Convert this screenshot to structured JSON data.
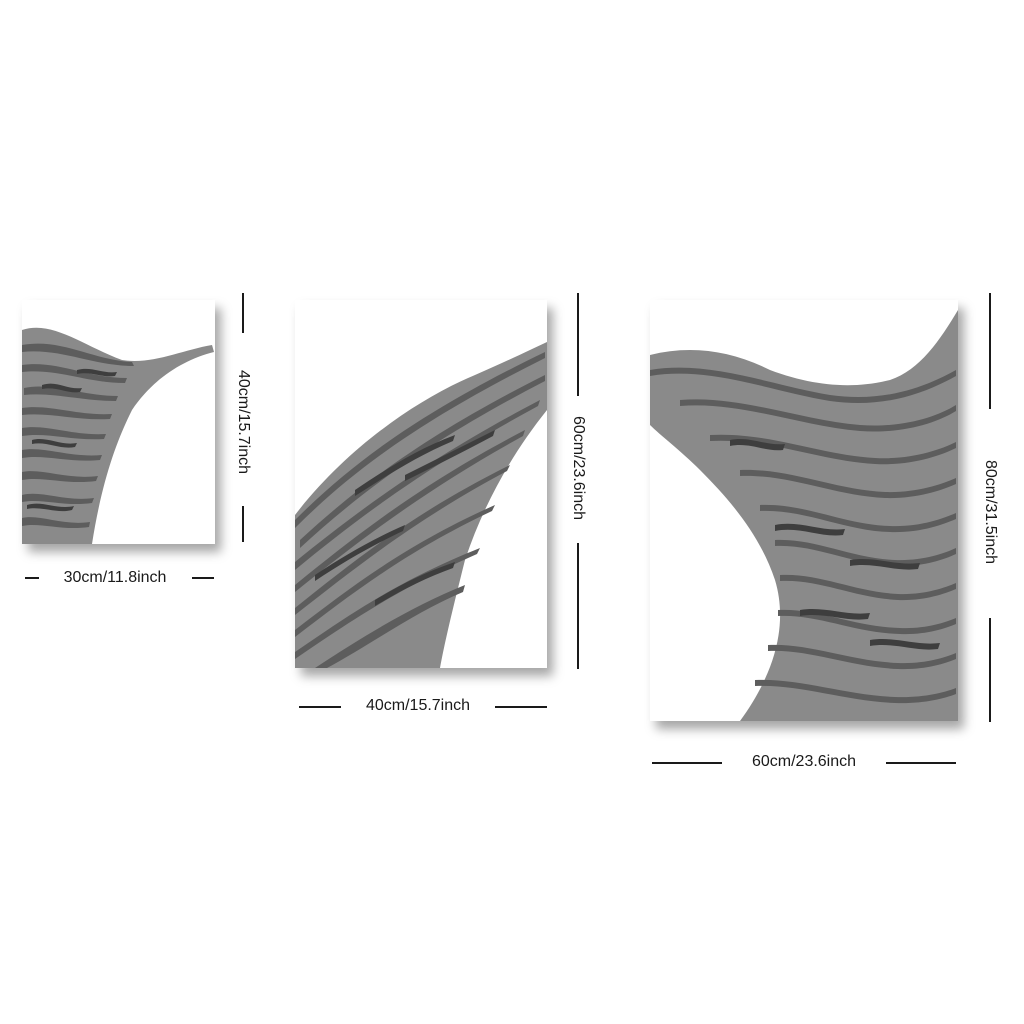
{
  "panels": [
    {
      "width_label": "30cm/11.8inch",
      "height_label": "40cm/15.7inch"
    },
    {
      "width_label": "40cm/15.7inch",
      "height_label": "60cm/23.6inch"
    },
    {
      "width_label": "60cm/23.6inch",
      "height_label": "80cm/31.5inch"
    }
  ],
  "colors": {
    "texture": "#5d5d5d",
    "background": "#ffffff",
    "text": "#1a1a1a"
  }
}
